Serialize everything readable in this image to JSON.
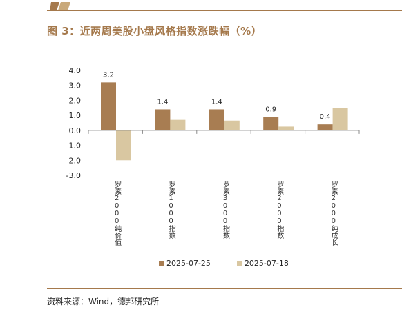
{
  "figure": {
    "title": "图 3：近两周美股小盘风格指数涨跌幅（%）",
    "source": "资料来源：Wind，德邦研究所"
  },
  "colors": {
    "accent": "#a5794c",
    "series_1": "#a87d52",
    "series_2": "#d9c7a1"
  },
  "chart_data": {
    "type": "bar",
    "categories": [
      "罗素2000纯价值",
      "罗素1000指数",
      "罗素3000指数",
      "罗素2000指数",
      "罗素2000纯成长"
    ],
    "series": [
      {
        "name": "2025-07-25",
        "values": [
          3.2,
          1.4,
          1.4,
          0.9,
          0.4
        ]
      },
      {
        "name": "2025-07-18",
        "values": [
          -2.0,
          0.7,
          0.65,
          0.25,
          1.5
        ]
      }
    ],
    "data_labels": [
      "3.2",
      "1.4",
      "1.4",
      "0.9",
      "0.4"
    ],
    "ylim": [
      -3.0,
      4.0
    ],
    "yticks": [
      "4.0",
      "3.0",
      "2.0",
      "1.0",
      "0.0",
      "-1.0",
      "-2.0",
      "-3.0"
    ],
    "grid": false,
    "legend_position": "bottom"
  }
}
